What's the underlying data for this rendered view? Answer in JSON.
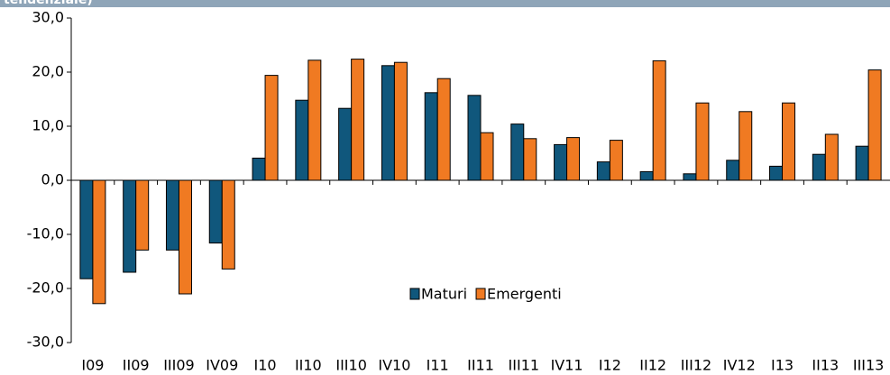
{
  "chart_data": {
    "type": "bar",
    "title": "tendenziale)",
    "categories": [
      "I09",
      "II09",
      "III09",
      "IV09",
      "I10",
      "II10",
      "III10",
      "IV10",
      "I11",
      "II11",
      "III11",
      "IV11",
      "I12",
      "II12",
      "III12",
      "IV12",
      "I13",
      "II13",
      "III13"
    ],
    "series": [
      {
        "name": "Maturi",
        "color": "#10577c",
        "values": [
          -18.2,
          -17,
          -12.9,
          -11.6,
          4.1,
          14.8,
          13.3,
          21.2,
          16.2,
          15.7,
          10.4,
          6.6,
          3.4,
          1.6,
          1.2,
          3.7,
          2.6,
          4.8,
          6.3
        ]
      },
      {
        "name": "Emergenti",
        "color": "#f07a22",
        "values": [
          -22.8,
          -12.9,
          -21,
          -16.4,
          19.4,
          22.2,
          22.4,
          21.8,
          18.8,
          8.8,
          7.7,
          7.9,
          7.4,
          22.1,
          14.3,
          12.7,
          14.3,
          8.5,
          20.4
        ]
      }
    ],
    "ylim": [
      -30,
      30
    ],
    "yticks": [
      {
        "value": -30,
        "label": "-30,0"
      },
      {
        "value": -20,
        "label": "-20,0"
      },
      {
        "value": -10,
        "label": "-10,0"
      },
      {
        "value": 0,
        "label": "0,0"
      },
      {
        "value": 10,
        "label": "10,0"
      },
      {
        "value": 20,
        "label": "20,0"
      },
      {
        "value": 30,
        "label": "30,0"
      }
    ]
  }
}
